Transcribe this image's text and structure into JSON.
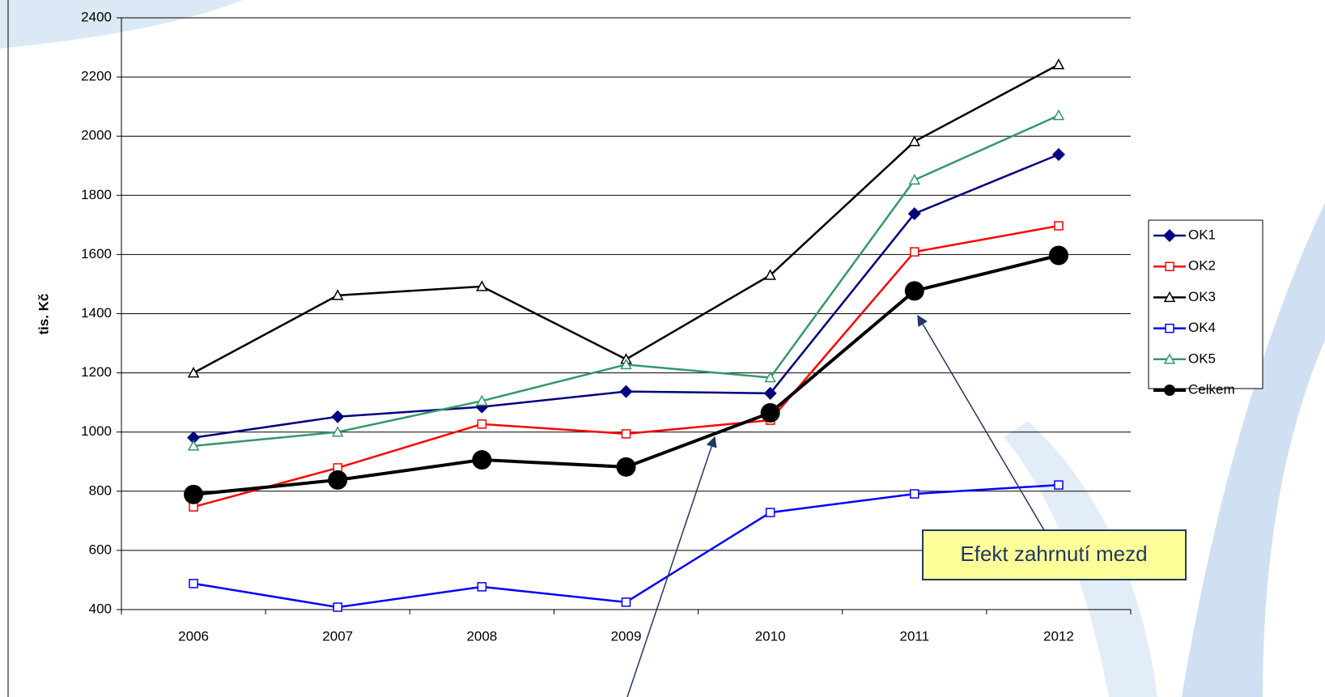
{
  "chart_data": {
    "type": "line",
    "y_label": "tis. Kč",
    "categories": [
      "2006",
      "2007",
      "2008",
      "2009",
      "2010",
      "2011",
      "2012"
    ],
    "series": [
      {
        "name": "OK1",
        "color": "#000080",
        "marker": "diamond",
        "values": [
          981,
          1052,
          1085,
          1137,
          1131,
          1738,
          1938
        ]
      },
      {
        "name": "OK2",
        "color": "#ff0000",
        "marker": "square",
        "values": [
          747,
          879,
          1027,
          994,
          1040,
          1609,
          1697
        ]
      },
      {
        "name": "OK3",
        "color": "#000000",
        "marker": "triangle",
        "values": [
          1200,
          1462,
          1492,
          1246,
          1530,
          1982,
          2242
        ]
      },
      {
        "name": "OK4",
        "color": "#0000ff",
        "marker": "square",
        "values": [
          488,
          408,
          477,
          425,
          728,
          791,
          821
        ]
      },
      {
        "name": "OK5",
        "color": "#339966",
        "marker": "triangle",
        "values": [
          953,
          1000,
          1105,
          1228,
          1184,
          1852,
          2070
        ]
      },
      {
        "name": "Celkem",
        "color": "#000000",
        "marker": "circle",
        "values": [
          789,
          838,
          906,
          882,
          1065,
          1477,
          1597
        ]
      }
    ],
    "ylim": [
      400,
      2400
    ],
    "yticks": [
      400,
      600,
      800,
      1000,
      1200,
      1400,
      1600,
      1800,
      2000,
      2200,
      2400
    ],
    "grid": true,
    "legend": "right",
    "annotation": "Efekt zahrnutí mezd"
  }
}
